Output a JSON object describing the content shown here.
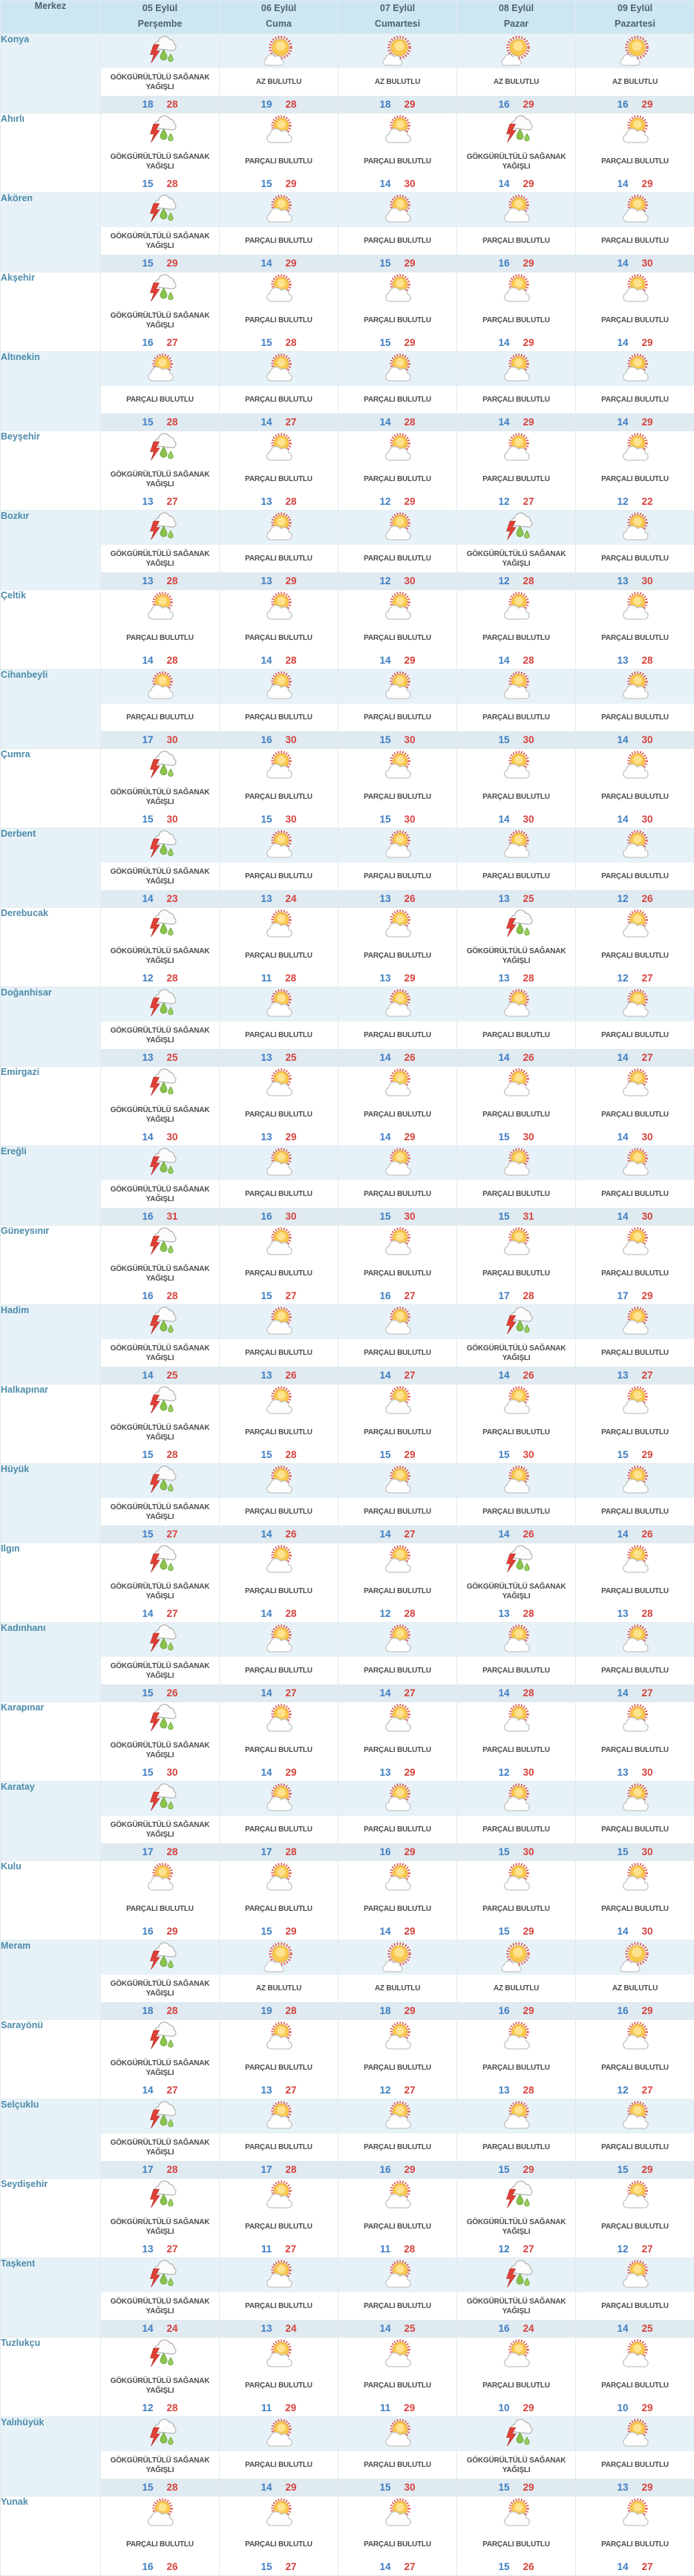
{
  "table": {
    "header": {
      "merkez_label": "Merkez",
      "days": [
        {
          "date": "05 Eylül",
          "weekday": "Perşembe"
        },
        {
          "date": "06 Eylül",
          "weekday": "Cuma"
        },
        {
          "date": "07 Eylül",
          "weekday": "Cumartesi"
        },
        {
          "date": "08 Eylül",
          "weekday": "Pazar"
        },
        {
          "date": "09 Eylül",
          "weekday": "Pazartesi"
        }
      ]
    },
    "conditions": {
      "ts": {
        "label": "GÖKGÜRÜLTÜLÜ SAĞANAK YAĞIŞLI",
        "icon": "thunderstorm-rain-icon"
      },
      "pb": {
        "label": "PARÇALI BULUTLU",
        "icon": "sun-behind-cloud-icon"
      },
      "ab": {
        "label": "AZ BULUTLU",
        "icon": "sun-small-cloud-icon"
      }
    },
    "rows": [
      {
        "name": "Konya",
        "cells": [
          {
            "c": "ts",
            "min": 18,
            "max": 28
          },
          {
            "c": "ab",
            "min": 19,
            "max": 28
          },
          {
            "c": "ab",
            "min": 18,
            "max": 29
          },
          {
            "c": "ab",
            "min": 16,
            "max": 29
          },
          {
            "c": "ab",
            "min": 16,
            "max": 29
          }
        ]
      },
      {
        "name": "Ahırlı",
        "cells": [
          {
            "c": "ts",
            "min": 15,
            "max": 28
          },
          {
            "c": "pb",
            "min": 15,
            "max": 29
          },
          {
            "c": "pb",
            "min": 14,
            "max": 30
          },
          {
            "c": "ts",
            "min": 14,
            "max": 29
          },
          {
            "c": "pb",
            "min": 14,
            "max": 29
          }
        ]
      },
      {
        "name": "Akören",
        "cells": [
          {
            "c": "ts",
            "min": 15,
            "max": 29
          },
          {
            "c": "pb",
            "min": 14,
            "max": 29
          },
          {
            "c": "pb",
            "min": 15,
            "max": 29
          },
          {
            "c": "pb",
            "min": 16,
            "max": 29
          },
          {
            "c": "pb",
            "min": 14,
            "max": 30
          }
        ]
      },
      {
        "name": "Akşehir",
        "cells": [
          {
            "c": "ts",
            "min": 16,
            "max": 27
          },
          {
            "c": "pb",
            "min": 15,
            "max": 28
          },
          {
            "c": "pb",
            "min": 15,
            "max": 29
          },
          {
            "c": "pb",
            "min": 14,
            "max": 29
          },
          {
            "c": "pb",
            "min": 14,
            "max": 29
          }
        ]
      },
      {
        "name": "Altınekin",
        "cells": [
          {
            "c": "pb",
            "min": 15,
            "max": 28
          },
          {
            "c": "pb",
            "min": 14,
            "max": 27
          },
          {
            "c": "pb",
            "min": 14,
            "max": 28
          },
          {
            "c": "pb",
            "min": 14,
            "max": 29
          },
          {
            "c": "pb",
            "min": 14,
            "max": 29
          }
        ]
      },
      {
        "name": "Beyşehir",
        "cells": [
          {
            "c": "ts",
            "min": 13,
            "max": 27
          },
          {
            "c": "pb",
            "min": 13,
            "max": 28
          },
          {
            "c": "pb",
            "min": 12,
            "max": 29
          },
          {
            "c": "pb",
            "min": 12,
            "max": 27
          },
          {
            "c": "pb",
            "min": 12,
            "max": 22
          }
        ]
      },
      {
        "name": "Bozkır",
        "cells": [
          {
            "c": "ts",
            "min": 13,
            "max": 28
          },
          {
            "c": "pb",
            "min": 13,
            "max": 29
          },
          {
            "c": "pb",
            "min": 12,
            "max": 30
          },
          {
            "c": "ts",
            "min": 12,
            "max": 28
          },
          {
            "c": "pb",
            "min": 13,
            "max": 30
          }
        ]
      },
      {
        "name": "Çeltik",
        "cells": [
          {
            "c": "pb",
            "min": 14,
            "max": 28
          },
          {
            "c": "pb",
            "min": 14,
            "max": 28
          },
          {
            "c": "pb",
            "min": 14,
            "max": 29
          },
          {
            "c": "pb",
            "min": 14,
            "max": 28
          },
          {
            "c": "pb",
            "min": 13,
            "max": 28
          }
        ]
      },
      {
        "name": "Cihanbeyli",
        "cells": [
          {
            "c": "pb",
            "min": 17,
            "max": 30
          },
          {
            "c": "pb",
            "min": 16,
            "max": 30
          },
          {
            "c": "pb",
            "min": 15,
            "max": 30
          },
          {
            "c": "pb",
            "min": 15,
            "max": 30
          },
          {
            "c": "pb",
            "min": 14,
            "max": 30
          }
        ]
      },
      {
        "name": "Çumra",
        "cells": [
          {
            "c": "ts",
            "min": 15,
            "max": 30
          },
          {
            "c": "pb",
            "min": 15,
            "max": 30
          },
          {
            "c": "pb",
            "min": 15,
            "max": 30
          },
          {
            "c": "pb",
            "min": 14,
            "max": 30
          },
          {
            "c": "pb",
            "min": 14,
            "max": 30
          }
        ]
      },
      {
        "name": "Derbent",
        "cells": [
          {
            "c": "ts",
            "min": 14,
            "max": 23
          },
          {
            "c": "pb",
            "min": 13,
            "max": 24
          },
          {
            "c": "pb",
            "min": 13,
            "max": 26
          },
          {
            "c": "pb",
            "min": 13,
            "max": 25
          },
          {
            "c": "pb",
            "min": 12,
            "max": 26
          }
        ]
      },
      {
        "name": "Derebucak",
        "cells": [
          {
            "c": "ts",
            "min": 12,
            "max": 28
          },
          {
            "c": "pb",
            "min": 11,
            "max": 28
          },
          {
            "c": "pb",
            "min": 13,
            "max": 29
          },
          {
            "c": "ts",
            "min": 13,
            "max": 28
          },
          {
            "c": "pb",
            "min": 12,
            "max": 27
          }
        ]
      },
      {
        "name": "Doğanhisar",
        "cells": [
          {
            "c": "ts",
            "min": 13,
            "max": 25
          },
          {
            "c": "pb",
            "min": 13,
            "max": 25
          },
          {
            "c": "pb",
            "min": 14,
            "max": 26
          },
          {
            "c": "pb",
            "min": 14,
            "max": 26
          },
          {
            "c": "pb",
            "min": 14,
            "max": 27
          }
        ]
      },
      {
        "name": "Emirgazi",
        "cells": [
          {
            "c": "ts",
            "min": 14,
            "max": 30
          },
          {
            "c": "pb",
            "min": 13,
            "max": 29
          },
          {
            "c": "pb",
            "min": 14,
            "max": 29
          },
          {
            "c": "pb",
            "min": 15,
            "max": 30
          },
          {
            "c": "pb",
            "min": 14,
            "max": 30
          }
        ]
      },
      {
        "name": "Ereğli",
        "cells": [
          {
            "c": "ts",
            "min": 16,
            "max": 31
          },
          {
            "c": "pb",
            "min": 16,
            "max": 30
          },
          {
            "c": "pb",
            "min": 15,
            "max": 30
          },
          {
            "c": "pb",
            "min": 15,
            "max": 31
          },
          {
            "c": "pb",
            "min": 14,
            "max": 30
          }
        ]
      },
      {
        "name": "Güneysınır",
        "cells": [
          {
            "c": "ts",
            "min": 16,
            "max": 28
          },
          {
            "c": "pb",
            "min": 15,
            "max": 27
          },
          {
            "c": "pb",
            "min": 16,
            "max": 27
          },
          {
            "c": "pb",
            "min": 17,
            "max": 28
          },
          {
            "c": "pb",
            "min": 17,
            "max": 29
          }
        ]
      },
      {
        "name": "Hadim",
        "cells": [
          {
            "c": "ts",
            "min": 14,
            "max": 25
          },
          {
            "c": "pb",
            "min": 13,
            "max": 26
          },
          {
            "c": "pb",
            "min": 14,
            "max": 27
          },
          {
            "c": "ts",
            "min": 14,
            "max": 26
          },
          {
            "c": "pb",
            "min": 13,
            "max": 27
          }
        ]
      },
      {
        "name": "Halkapınar",
        "cells": [
          {
            "c": "ts",
            "min": 15,
            "max": 28
          },
          {
            "c": "pb",
            "min": 15,
            "max": 28
          },
          {
            "c": "pb",
            "min": 15,
            "max": 29
          },
          {
            "c": "pb",
            "min": 15,
            "max": 30
          },
          {
            "c": "pb",
            "min": 15,
            "max": 29
          }
        ]
      },
      {
        "name": "Hüyük",
        "cells": [
          {
            "c": "ts",
            "min": 15,
            "max": 27
          },
          {
            "c": "pb",
            "min": 14,
            "max": 26
          },
          {
            "c": "pb",
            "min": 14,
            "max": 27
          },
          {
            "c": "pb",
            "min": 14,
            "max": 26
          },
          {
            "c": "pb",
            "min": 14,
            "max": 26
          }
        ]
      },
      {
        "name": "Ilgın",
        "cells": [
          {
            "c": "ts",
            "min": 14,
            "max": 27
          },
          {
            "c": "pb",
            "min": 14,
            "max": 28
          },
          {
            "c": "pb",
            "min": 12,
            "max": 28
          },
          {
            "c": "ts",
            "min": 13,
            "max": 28
          },
          {
            "c": "pb",
            "min": 13,
            "max": 28
          }
        ]
      },
      {
        "name": "Kadınhanı",
        "cells": [
          {
            "c": "ts",
            "min": 15,
            "max": 26
          },
          {
            "c": "pb",
            "min": 14,
            "max": 27
          },
          {
            "c": "pb",
            "min": 14,
            "max": 27
          },
          {
            "c": "pb",
            "min": 14,
            "max": 28
          },
          {
            "c": "pb",
            "min": 14,
            "max": 27
          }
        ]
      },
      {
        "name": "Karapınar",
        "cells": [
          {
            "c": "ts",
            "min": 15,
            "max": 30
          },
          {
            "c": "pb",
            "min": 14,
            "max": 29
          },
          {
            "c": "pb",
            "min": 13,
            "max": 29
          },
          {
            "c": "pb",
            "min": 12,
            "max": 30
          },
          {
            "c": "pb",
            "min": 13,
            "max": 30
          }
        ]
      },
      {
        "name": "Karatay",
        "cells": [
          {
            "c": "ts",
            "min": 17,
            "max": 28
          },
          {
            "c": "pb",
            "min": 17,
            "max": 28
          },
          {
            "c": "pb",
            "min": 16,
            "max": 29
          },
          {
            "c": "pb",
            "min": 15,
            "max": 30
          },
          {
            "c": "pb",
            "min": 15,
            "max": 30
          }
        ]
      },
      {
        "name": "Kulu",
        "cells": [
          {
            "c": "pb",
            "min": 16,
            "max": 29
          },
          {
            "c": "pb",
            "min": 15,
            "max": 29
          },
          {
            "c": "pb",
            "min": 14,
            "max": 29
          },
          {
            "c": "pb",
            "min": 15,
            "max": 29
          },
          {
            "c": "pb",
            "min": 14,
            "max": 30
          }
        ]
      },
      {
        "name": "Meram",
        "cells": [
          {
            "c": "ts",
            "min": 18,
            "max": 28
          },
          {
            "c": "ab",
            "min": 19,
            "max": 28
          },
          {
            "c": "ab",
            "min": 18,
            "max": 29
          },
          {
            "c": "ab",
            "min": 16,
            "max": 29
          },
          {
            "c": "ab",
            "min": 16,
            "max": 29
          }
        ]
      },
      {
        "name": "Sarayönü",
        "cells": [
          {
            "c": "ts",
            "min": 14,
            "max": 27
          },
          {
            "c": "pb",
            "min": 13,
            "max": 27
          },
          {
            "c": "pb",
            "min": 12,
            "max": 27
          },
          {
            "c": "pb",
            "min": 13,
            "max": 28
          },
          {
            "c": "pb",
            "min": 12,
            "max": 27
          }
        ]
      },
      {
        "name": "Selçuklu",
        "cells": [
          {
            "c": "ts",
            "min": 17,
            "max": 28
          },
          {
            "c": "pb",
            "min": 17,
            "max": 28
          },
          {
            "c": "pb",
            "min": 16,
            "max": 29
          },
          {
            "c": "pb",
            "min": 15,
            "max": 29
          },
          {
            "c": "pb",
            "min": 15,
            "max": 29
          }
        ]
      },
      {
        "name": "Seydişehir",
        "cells": [
          {
            "c": "ts",
            "min": 13,
            "max": 27
          },
          {
            "c": "pb",
            "min": 11,
            "max": 27
          },
          {
            "c": "pb",
            "min": 11,
            "max": 28
          },
          {
            "c": "ts",
            "min": 12,
            "max": 27
          },
          {
            "c": "pb",
            "min": 12,
            "max": 27
          }
        ]
      },
      {
        "name": "Taşkent",
        "cells": [
          {
            "c": "ts",
            "min": 14,
            "max": 24
          },
          {
            "c": "pb",
            "min": 13,
            "max": 24
          },
          {
            "c": "pb",
            "min": 14,
            "max": 25
          },
          {
            "c": "ts",
            "min": 16,
            "max": 24
          },
          {
            "c": "pb",
            "min": 14,
            "max": 25
          }
        ]
      },
      {
        "name": "Tuzlukçu",
        "cells": [
          {
            "c": "ts",
            "min": 12,
            "max": 28
          },
          {
            "c": "pb",
            "min": 11,
            "max": 29
          },
          {
            "c": "pb",
            "min": 11,
            "max": 29
          },
          {
            "c": "pb",
            "min": 10,
            "max": 29
          },
          {
            "c": "pb",
            "min": 10,
            "max": 29
          }
        ]
      },
      {
        "name": "Yalıhüyük",
        "cells": [
          {
            "c": "ts",
            "min": 15,
            "max": 28
          },
          {
            "c": "pb",
            "min": 14,
            "max": 29
          },
          {
            "c": "pb",
            "min": 15,
            "max": 30
          },
          {
            "c": "ts",
            "min": 15,
            "max": 29
          },
          {
            "c": "pb",
            "min": 13,
            "max": 29
          }
        ]
      },
      {
        "name": "Yunak",
        "cells": [
          {
            "c": "pb",
            "min": 16,
            "max": 26
          },
          {
            "c": "pb",
            "min": 15,
            "max": 27
          },
          {
            "c": "pb",
            "min": 14,
            "max": 27
          },
          {
            "c": "pb",
            "min": 15,
            "max": 26
          },
          {
            "c": "pb",
            "min": 14,
            "max": 27
          }
        ]
      }
    ]
  },
  "colors": {
    "header_bg": "#cde7f2",
    "row_tint_bg": "#e7f2f8",
    "temp_band_tint_bg": "#dfeaf1",
    "district_text": "#4d8cab",
    "condition_text": "#4d4d4d",
    "min_temp_text": "#3d7dc2",
    "max_temp_text": "#d5423c"
  }
}
